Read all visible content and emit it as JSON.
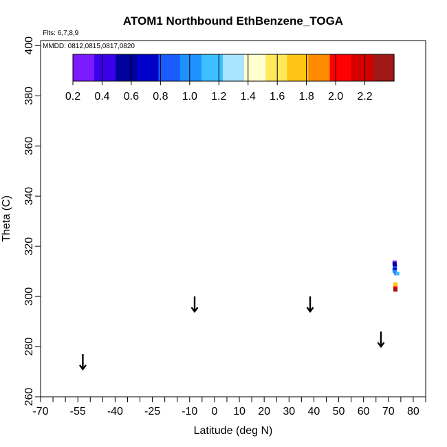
{
  "chart_data": {
    "type": "scatter",
    "title": "ATOM1 Northbound EthBenzene_TOGA",
    "flights_note": "Flts: 6,7,8,9",
    "dates_note": "MMDD: 0812,0815,0817,0820",
    "xlabel": "Latitude (deg N)",
    "ylabel": "Theta (C)",
    "xlim": [
      -70,
      85
    ],
    "ylim": [
      260,
      402
    ],
    "x_ticks": [
      {
        "value": -70,
        "label": "-70"
      },
      {
        "value": -55,
        "label": "-55"
      },
      {
        "value": -40,
        "label": "-40"
      },
      {
        "value": -25,
        "label": "-25"
      },
      {
        "value": -10,
        "label": "-10"
      },
      {
        "value": 0,
        "label": "0"
      },
      {
        "value": 10,
        "label": "10"
      },
      {
        "value": 20,
        "label": "20"
      },
      {
        "value": 30,
        "label": "30"
      },
      {
        "value": 40,
        "label": "40"
      },
      {
        "value": 50,
        "label": "50"
      },
      {
        "value": 60,
        "label": "60"
      },
      {
        "value": 70,
        "label": "70"
      },
      {
        "value": 80,
        "label": "80"
      }
    ],
    "x_minor_ticks": [
      -65,
      -60,
      -50,
      -45,
      -35,
      -30,
      -20,
      -15,
      -5,
      5,
      15,
      25,
      35,
      45,
      55,
      65,
      75,
      85
    ],
    "y_ticks": [
      {
        "value": 260,
        "label": "260"
      },
      {
        "value": 280,
        "label": "280"
      },
      {
        "value": 300,
        "label": "300"
      },
      {
        "value": 320,
        "label": "320"
      },
      {
        "value": 340,
        "label": "340"
      },
      {
        "value": 360,
        "label": "360"
      },
      {
        "value": 380,
        "label": "380"
      },
      {
        "value": 400,
        "label": "400"
      }
    ],
    "colorbar": {
      "min": 0.2,
      "max": 2.4,
      "labels": [
        "0.2",
        "0.4",
        "0.6",
        "0.8",
        "1.0",
        "1.2",
        "1.4",
        "1.6",
        "1.8",
        "2.0",
        "2.2"
      ],
      "label_values": [
        0.2,
        0.4,
        0.6,
        0.8,
        1.0,
        1.2,
        1.4,
        1.6,
        1.8,
        2.0,
        2.2
      ],
      "colors": [
        "#7a1aff",
        "#3a00e8",
        "#00009a",
        "#0000c8",
        "#1a5cff",
        "#1e90ff",
        "#3cc0ff",
        "#a8e4ff",
        "#ffffd0",
        "#ffe85a",
        "#ffc414",
        "#ff8c00",
        "#ff0000",
        "#d40000",
        "#a01818"
      ],
      "placement": "top-inside"
    },
    "points": [
      {
        "x": 72.5,
        "y": 313.5,
        "v": 0.3
      },
      {
        "x": 72.5,
        "y": 312.8,
        "v": 0.5
      },
      {
        "x": 72.6,
        "y": 312.0,
        "v": 0.6
      },
      {
        "x": 72.6,
        "y": 311.2,
        "v": 0.9
      },
      {
        "x": 72.5,
        "y": 310.5,
        "v": 0.7
      },
      {
        "x": 72.6,
        "y": 309.8,
        "v": 1.0
      },
      {
        "x": 73.2,
        "y": 309.0,
        "v": 0.9
      },
      {
        "x": 73.6,
        "y": 309.0,
        "v": 1.1
      },
      {
        "x": 72.8,
        "y": 304.8,
        "v": 1.8
      },
      {
        "x": 72.8,
        "y": 304.0,
        "v": 1.7
      },
      {
        "x": 72.8,
        "y": 303.2,
        "v": 2.1
      },
      {
        "x": 72.8,
        "y": 302.5,
        "v": 2.3
      }
    ],
    "arrows": [
      {
        "x": -53,
        "y_top": 277,
        "y_bottom": 271
      },
      {
        "x": -8,
        "y_top": 300,
        "y_bottom": 294
      },
      {
        "x": 38.5,
        "y_top": 300,
        "y_bottom": 294
      },
      {
        "x": 67,
        "y_top": 286,
        "y_bottom": 280
      }
    ]
  }
}
